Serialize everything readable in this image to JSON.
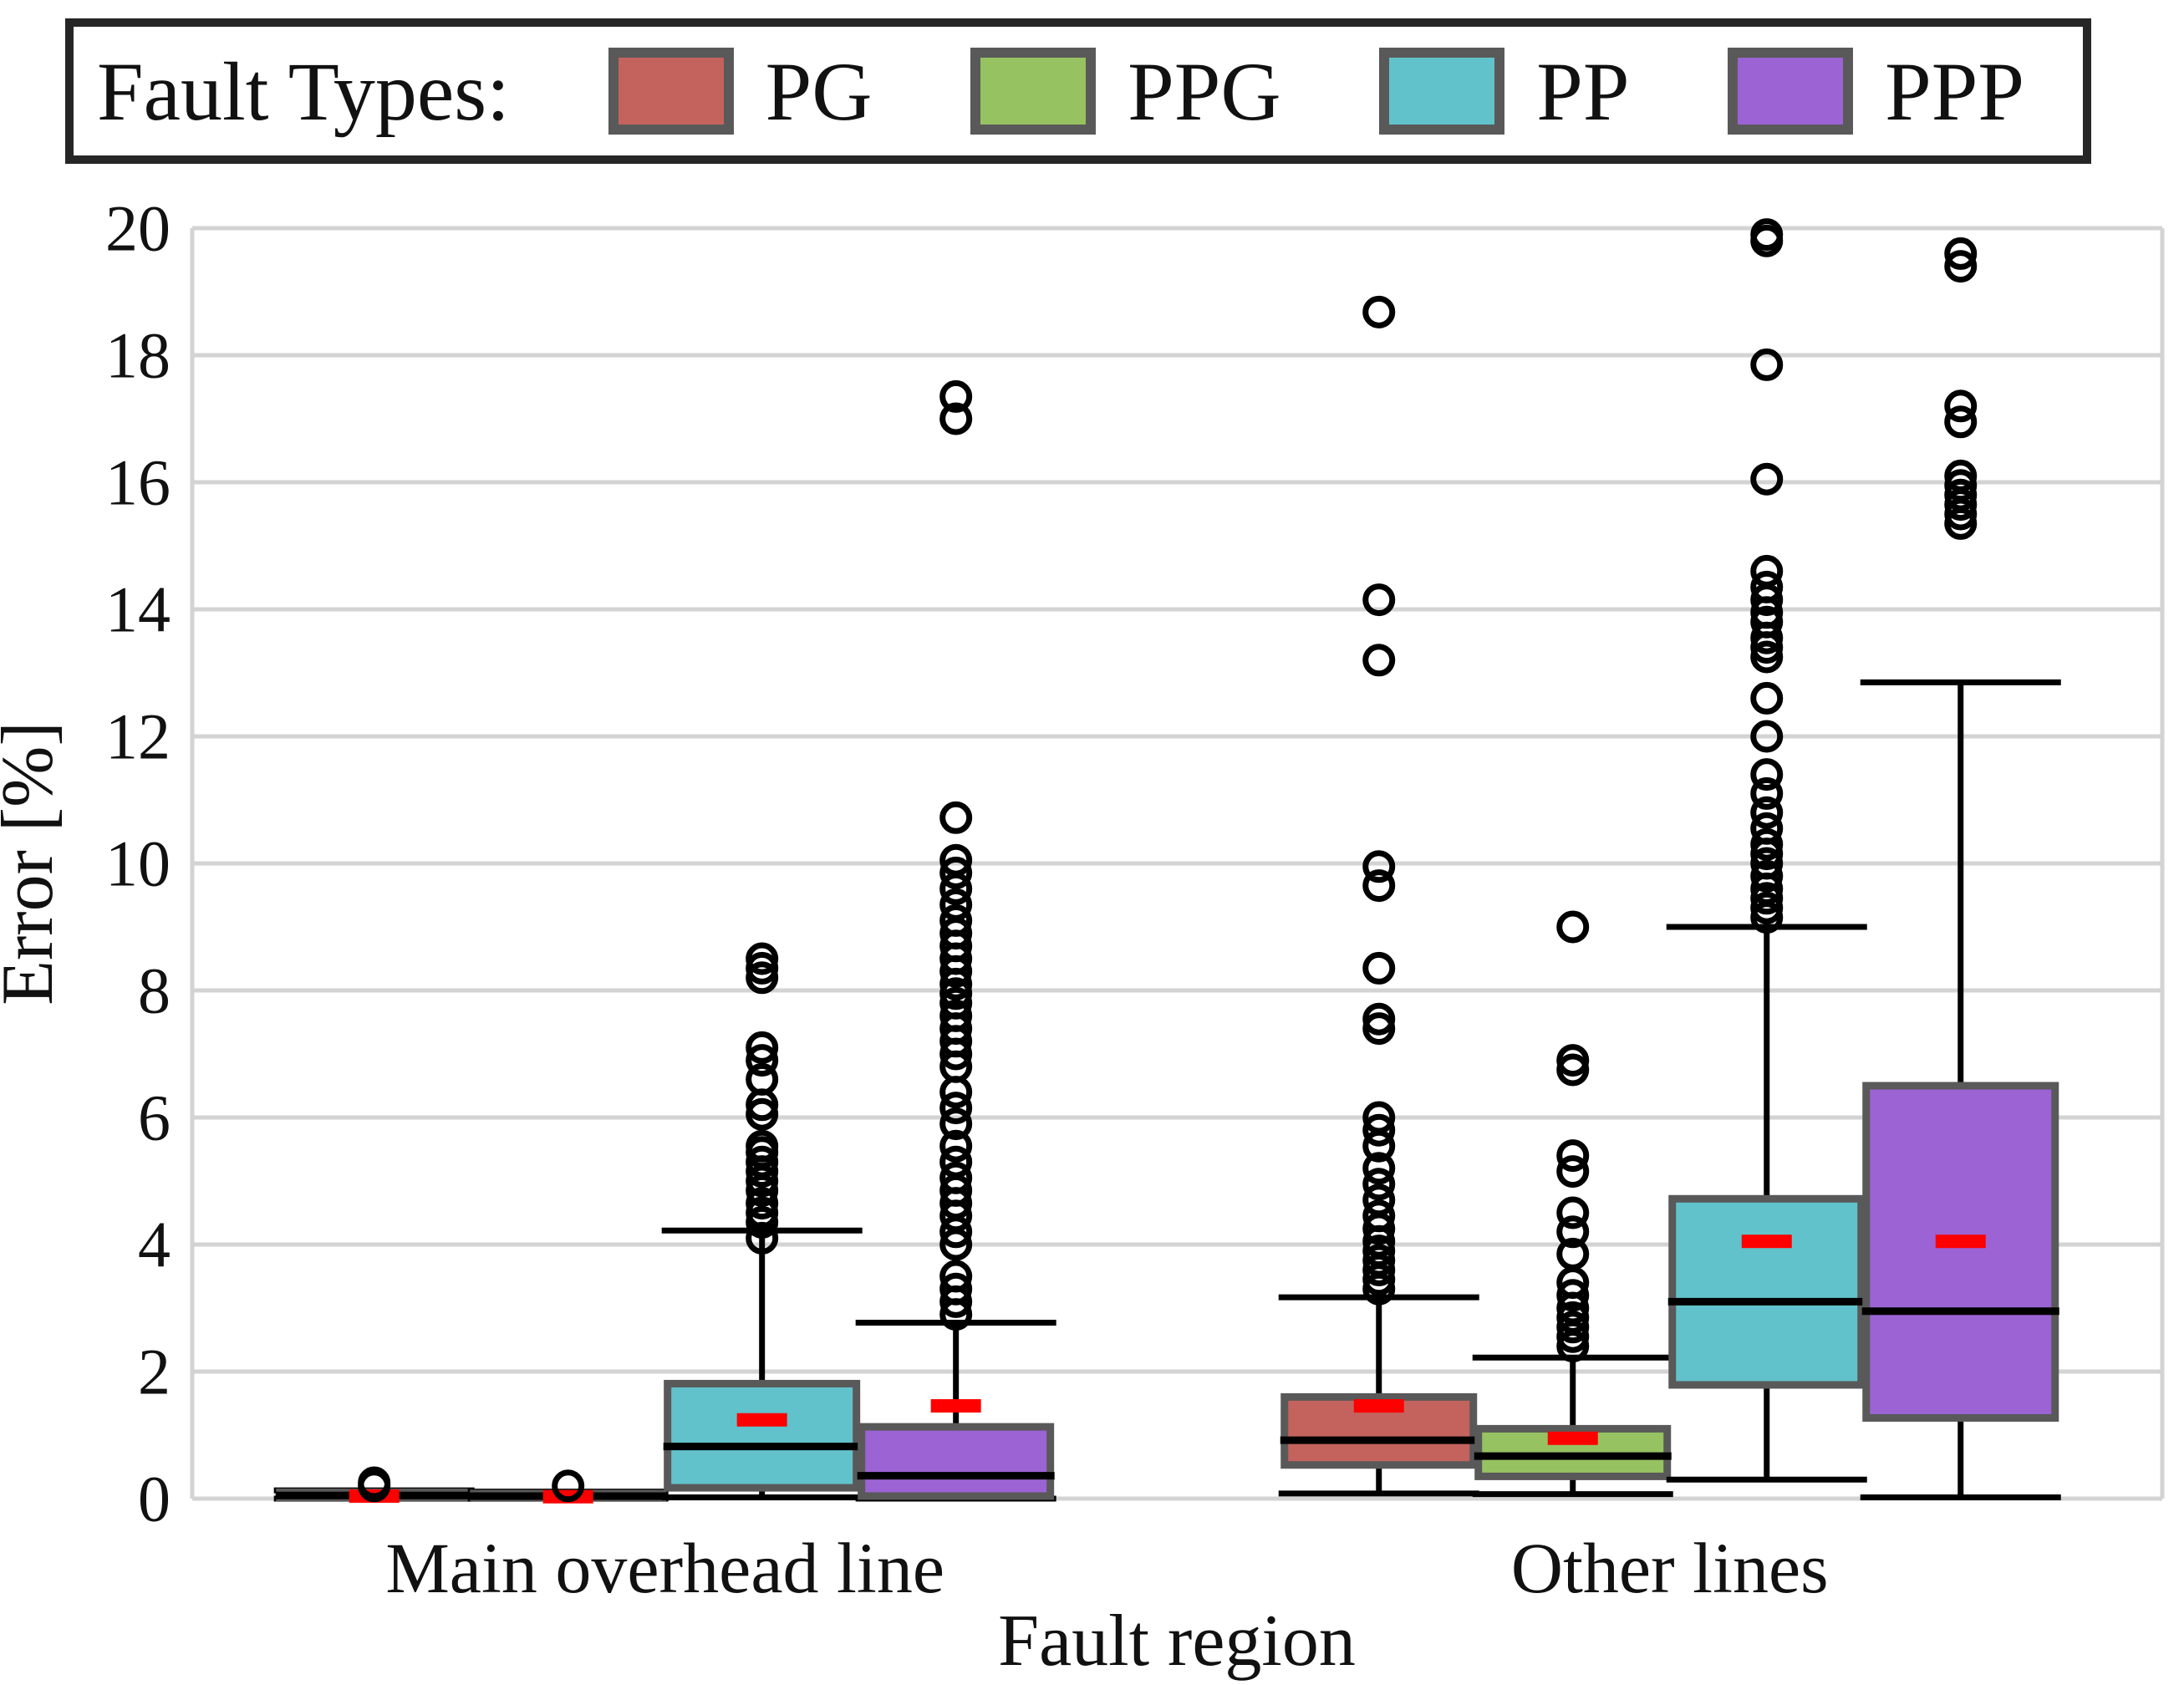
{
  "legend": {
    "title": "Fault Types:",
    "items": [
      {
        "label": "PG",
        "color": "#c4635d"
      },
      {
        "label": "PPG",
        "color": "#97c262"
      },
      {
        "label": "PP",
        "color": "#62c2cb"
      },
      {
        "label": "PPP",
        "color": "#9b63d3"
      }
    ]
  },
  "axes": {
    "ylabel": "Error [%]",
    "xlabel": "Fault region",
    "yticks": [
      0,
      2,
      4,
      6,
      8,
      10,
      12,
      14,
      16,
      18,
      20
    ],
    "ylim": [
      0,
      20
    ]
  },
  "style_colors": {
    "grid": "#d3d3d3",
    "box_border": "#595959",
    "median": "#000000",
    "whisker": "#000000",
    "mean": "#fe0000",
    "legend_border": "#262626"
  },
  "chart_data": {
    "type": "grouped_boxplot",
    "title": "",
    "xlabel": "Fault region",
    "ylabel": "Error [%]",
    "ylim": [
      0,
      20
    ],
    "grid": "horizontal, every 2 units, light gray",
    "legend_position": "top, outside plot, framed",
    "categories": [
      "Main overhead line",
      "Other lines"
    ],
    "series": [
      {
        "name": "PG",
        "color": "#c4635d",
        "boxes": [
          {
            "whisker_low": 0.0,
            "q1": 0.01,
            "median": 0.05,
            "q3": 0.1,
            "whisker_high": 0.13,
            "mean": 0.04,
            "outliers": [
              0.2,
              0.25
            ]
          },
          {
            "whisker_low": 0.08,
            "q1": 0.53,
            "median": 0.92,
            "q3": 1.6,
            "whisker_high": 3.17,
            "mean": 1.46,
            "outliers": [
              3.3,
              3.45,
              3.6,
              3.75,
              3.9,
              4.05,
              4.25,
              4.45,
              4.7,
              4.95,
              5.2,
              5.55,
              5.8,
              6.0,
              7.4,
              7.55,
              8.35,
              9.65,
              9.95,
              13.2,
              14.15,
              18.68
            ]
          }
        ]
      },
      {
        "name": "PPG",
        "color": "#97c262",
        "boxes": [
          {
            "whisker_low": 0.0,
            "q1": 0.01,
            "median": 0.04,
            "q3": 0.08,
            "whisker_high": 0.11,
            "mean": 0.03,
            "outliers": [
              0.2
            ]
          },
          {
            "whisker_low": 0.07,
            "q1": 0.35,
            "median": 0.67,
            "q3": 1.1,
            "whisker_high": 2.22,
            "mean": 0.95,
            "outliers": [
              2.4,
              2.55,
              2.7,
              2.85,
              3.0,
              3.2,
              3.4,
              3.85,
              4.2,
              4.5,
              5.15,
              5.4,
              6.75,
              6.9,
              9.0
            ]
          }
        ]
      },
      {
        "name": "PP",
        "color": "#62c2cb",
        "boxes": [
          {
            "whisker_low": 0.02,
            "q1": 0.17,
            "median": 0.82,
            "q3": 1.81,
            "whisker_high": 4.22,
            "mean": 1.24,
            "outliers": [
              4.1,
              4.35,
              4.5,
              4.65,
              4.85,
              5.0,
              5.15,
              5.3,
              5.45,
              5.55,
              6.05,
              6.2,
              6.6,
              6.9,
              7.1,
              8.2,
              8.35,
              8.5
            ]
          },
          {
            "whisker_low": 0.3,
            "q1": 1.79,
            "median": 3.1,
            "q3": 4.72,
            "whisker_high": 9.0,
            "mean": 4.05,
            "outliers": [
              9.15,
              9.3,
              9.45,
              9.6,
              9.8,
              10.0,
              10.15,
              10.3,
              10.55,
              10.8,
              11.1,
              11.4,
              12.0,
              12.6,
              13.25,
              13.4,
              13.55,
              13.8,
              13.95,
              14.15,
              14.35,
              14.6,
              16.05,
              17.85,
              19.8,
              19.9
            ]
          }
        ]
      },
      {
        "name": "PPP",
        "color": "#9b63d3",
        "boxes": [
          {
            "whisker_low": 0.0,
            "q1": 0.04,
            "median": 0.36,
            "q3": 1.13,
            "whisker_high": 2.77,
            "mean": 1.46,
            "outliers": [
              2.9,
              3.1,
              3.3,
              3.5,
              4.0,
              4.2,
              4.45,
              4.65,
              4.85,
              5.05,
              5.3,
              5.55,
              5.9,
              6.15,
              6.4,
              6.8,
              7.0,
              7.2,
              7.4,
              7.6,
              7.8,
              7.95,
              8.1,
              8.3,
              8.5,
              8.7,
              8.9,
              9.1,
              9.35,
              9.6,
              9.85,
              10.05,
              10.72,
              17.0,
              17.35
            ]
          },
          {
            "whisker_low": 0.02,
            "q1": 1.27,
            "median": 2.95,
            "q3": 6.5,
            "whisker_high": 12.85,
            "mean": 4.05,
            "outliers": [
              15.35,
              15.5,
              15.65,
              15.8,
              15.95,
              16.1,
              16.95,
              17.2,
              19.4,
              19.6
            ]
          }
        ]
      }
    ]
  }
}
